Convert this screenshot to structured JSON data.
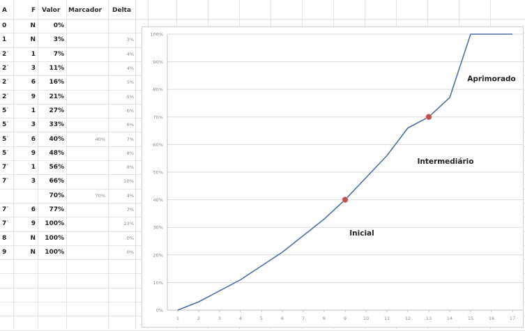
{
  "sheet": {
    "headers": {
      "a": "A",
      "f": "F",
      "valor": "Valor",
      "marcador": "Marcador",
      "delta": "Delta"
    },
    "rows": [
      {
        "a": "0",
        "tick": "",
        "f": "N",
        "valor": "0%",
        "marcador": "",
        "delta": ""
      },
      {
        "a": "1",
        "tick": "",
        "f": "N",
        "valor": "3%",
        "marcador": "",
        "delta": "3%"
      },
      {
        "a": "2",
        "tick": "'",
        "f": "1",
        "valor": "7%",
        "marcador": "",
        "delta": "4%"
      },
      {
        "a": "2",
        "tick": "'",
        "f": "3",
        "valor": "11%",
        "marcador": "",
        "delta": "4%"
      },
      {
        "a": "2",
        "tick": "'",
        "f": "6",
        "valor": "16%",
        "marcador": "",
        "delta": "5%"
      },
      {
        "a": "2",
        "tick": "'",
        "f": "9",
        "valor": "21%",
        "marcador": "",
        "delta": "5%"
      },
      {
        "a": "5",
        "tick": "'",
        "f": "1",
        "valor": "27%",
        "marcador": "",
        "delta": "6%"
      },
      {
        "a": "5",
        "tick": "'",
        "f": "3",
        "valor": "33%",
        "marcador": "",
        "delta": "6%"
      },
      {
        "a": "5",
        "tick": "'",
        "f": "6",
        "valor": "40%",
        "marcador": "40%",
        "delta": "7%"
      },
      {
        "a": "5",
        "tick": "'",
        "f": "9",
        "valor": "48%",
        "marcador": "",
        "delta": "8%"
      },
      {
        "a": "7",
        "tick": "'",
        "f": "1",
        "valor": "56%",
        "marcador": "",
        "delta": "8%"
      },
      {
        "a": "7",
        "tick": "'",
        "f": "3",
        "valor": "66%",
        "marcador": "",
        "delta": "10%"
      },
      {
        "a": "",
        "tick": "",
        "f": "",
        "valor": "70%",
        "marcador": "70%",
        "delta": "4%"
      },
      {
        "a": "7",
        "tick": "'",
        "f": "6",
        "valor": "77%",
        "marcador": "",
        "delta": "7%"
      },
      {
        "a": "7",
        "tick": "'",
        "f": "9",
        "valor": "100%",
        "marcador": "",
        "delta": "23%"
      },
      {
        "a": "8",
        "tick": "",
        "f": "N",
        "valor": "100%",
        "marcador": "",
        "delta": "0%"
      },
      {
        "a": "9",
        "tick": "",
        "f": "N",
        "valor": "100%",
        "marcador": "",
        "delta": "0%"
      }
    ]
  },
  "chart_data": {
    "type": "line",
    "title": "",
    "xlabel": "",
    "ylabel": "",
    "x": [
      1,
      2,
      3,
      4,
      5,
      6,
      7,
      8,
      9,
      10,
      11,
      12,
      13,
      14,
      15,
      16,
      17
    ],
    "x_tick_labels": [
      "1",
      "2",
      "3",
      "4",
      "5",
      "6",
      "7",
      "8",
      "9",
      "10",
      "11",
      "12",
      "13",
      "14",
      "15",
      "16",
      "17"
    ],
    "series": [
      {
        "values": [
          0,
          3,
          7,
          11,
          16,
          21,
          27,
          33,
          40,
          48,
          56,
          66,
          70,
          77,
          100,
          100,
          100
        ],
        "color": "#4a6fa5"
      }
    ],
    "markers": [
      {
        "x": 9,
        "y": 40,
        "color": "#c0504d"
      },
      {
        "x": 13,
        "y": 70,
        "color": "#c0504d"
      }
    ],
    "y_tick_labels": [
      "0%",
      "10%",
      "20%",
      "30%",
      "40%",
      "50%",
      "60%",
      "70%",
      "80%",
      "90%",
      "100%"
    ],
    "ylim": [
      0,
      100
    ],
    "xlim": [
      0.5,
      17.5
    ],
    "grid": true,
    "annotations": [
      {
        "text": "Inicial",
        "x": 9.8,
        "y": 27
      },
      {
        "text": "Intermediário",
        "x": 13.8,
        "y": 53
      },
      {
        "text": "Aprimorado",
        "x": 16.0,
        "y": 83
      }
    ],
    "colors": {
      "line": "#4a6fa5",
      "marker": "#c0504d",
      "grid": "#d9d9d9"
    }
  }
}
